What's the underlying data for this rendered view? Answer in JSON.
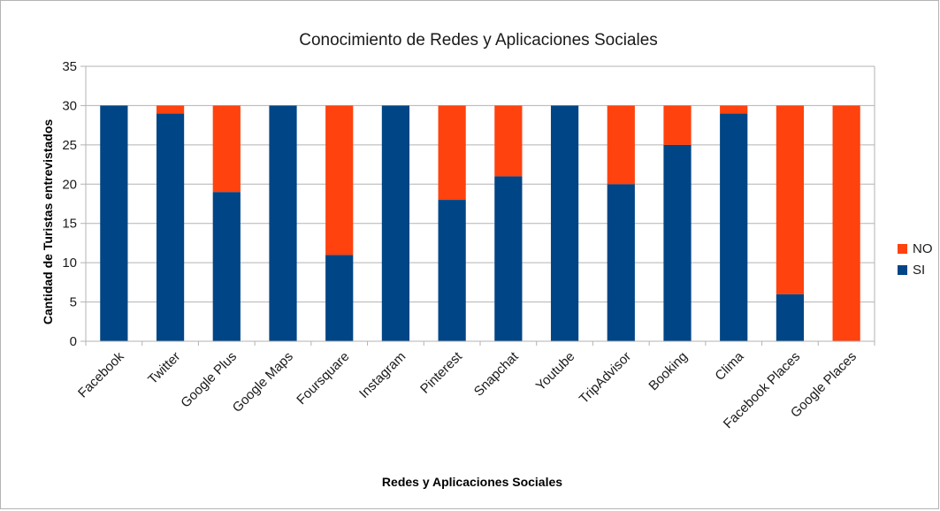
{
  "chart_data": {
    "type": "bar",
    "stacked": true,
    "title": "Conocimiento de Redes y Aplicaciones Sociales",
    "xlabel": "Redes y Aplicaciones Sociales",
    "ylabel": "Cantidad de Turistas entrevistados",
    "ylim": [
      0,
      35
    ],
    "yticks": [
      0,
      5,
      10,
      15,
      20,
      25,
      30,
      35
    ],
    "grid": true,
    "legend_position": "right",
    "categories": [
      "Facebook",
      "Twitter",
      "Google Plus",
      "Google Maps",
      "Foursquare",
      "Instagram",
      "Pinterest",
      "Snapchat",
      "Youtube",
      "TripAdvisor",
      "Booking",
      "Clima",
      "Facebook Places",
      "Google Places"
    ],
    "series": [
      {
        "name": "SI",
        "color": "#004586",
        "values": [
          30,
          29,
          19,
          30,
          11,
          30,
          18,
          21,
          30,
          20,
          25,
          29,
          6,
          0
        ]
      },
      {
        "name": "NO",
        "color": "#ff420e",
        "values": [
          0,
          1,
          11,
          0,
          19,
          0,
          12,
          9,
          0,
          10,
          5,
          1,
          24,
          30
        ]
      }
    ],
    "legend": [
      "NO",
      "SI"
    ]
  }
}
